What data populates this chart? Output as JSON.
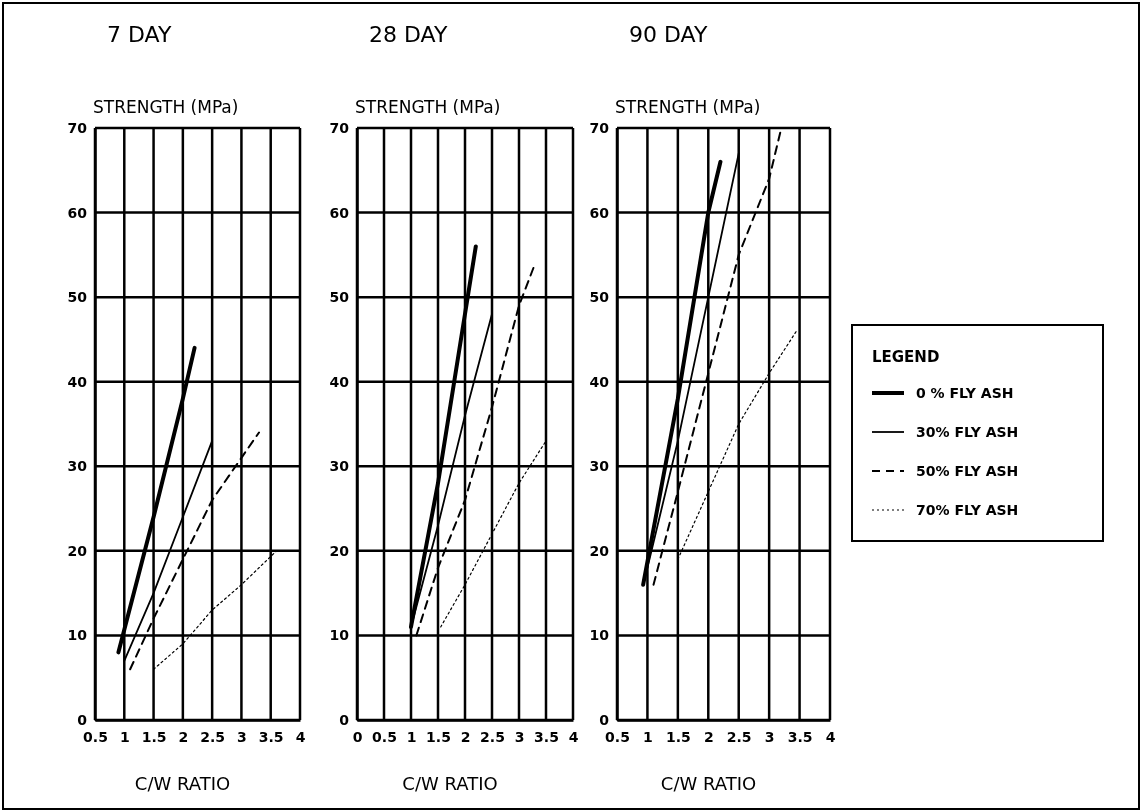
{
  "chart_data": [
    {
      "type": "line",
      "title": "7 DAY",
      "ylabel": "STRENGTH (MPa)",
      "xlabel": "C/W RATIO",
      "xlim": [
        0.5,
        4
      ],
      "xticks": [
        0.5,
        1,
        1.5,
        2,
        2.5,
        3,
        3.5,
        4
      ],
      "ylim": [
        0,
        70
      ],
      "yticks": [
        0,
        10,
        20,
        30,
        40,
        50,
        60,
        70
      ],
      "grid": true,
      "legend": false,
      "series": [
        {
          "color": "#000000",
          "line_style": "solid",
          "x": [
            0.9,
            1.5,
            2,
            2.2
          ],
          "values": [
            8,
            24,
            38,
            44
          ]
        },
        {
          "color": "#000000",
          "line_style": "solid",
          "x": [
            1,
            1.5,
            2,
            2.5
          ],
          "values": [
            7,
            15,
            24,
            33
          ]
        },
        {
          "color": "#000000",
          "line_style": "dashed",
          "x": [
            1.1,
            1.5,
            2,
            2.5,
            3,
            3.3
          ],
          "values": [
            6,
            12,
            19,
            26,
            31,
            34
          ]
        },
        {
          "color": "#000000",
          "line_style": "dotted",
          "x": [
            1.5,
            2,
            2.5,
            3,
            3.6
          ],
          "values": [
            6,
            9,
            13,
            16,
            20
          ]
        }
      ]
    },
    {
      "type": "line",
      "title": "28 DAY",
      "ylabel": "STRENGTH (MPa)",
      "xlabel": "C/W RATIO",
      "xlim": [
        0,
        4
      ],
      "xticks": [
        0,
        0.5,
        1,
        1.5,
        2,
        2.5,
        3,
        3.5,
        4
      ],
      "ylim": [
        0,
        70
      ],
      "yticks": [
        0,
        10,
        20,
        30,
        40,
        50,
        60,
        70
      ],
      "grid": true,
      "legend": false,
      "series": [
        {
          "color": "#000000",
          "line_style": "solid",
          "x": [
            1,
            1.5,
            2,
            2.2
          ],
          "values": [
            11,
            28,
            48,
            56
          ]
        },
        {
          "color": "#000000",
          "line_style": "solid",
          "x": [
            1,
            1.5,
            2,
            2.5
          ],
          "values": [
            11,
            23,
            36,
            48
          ]
        },
        {
          "color": "#000000",
          "line_style": "dashed",
          "x": [
            1.1,
            1.5,
            2,
            2.5,
            3,
            3.3
          ],
          "values": [
            10,
            18,
            26,
            37,
            49,
            54
          ]
        },
        {
          "color": "#000000",
          "line_style": "dotted",
          "x": [
            1.55,
            2,
            2.5,
            3,
            3.5
          ],
          "values": [
            11,
            16,
            22,
            28,
            33
          ]
        }
      ]
    },
    {
      "type": "line",
      "title": "90 DAY",
      "ylabel": "STRENGTH (MPa)",
      "xlabel": "C/W RATIO",
      "xlim": [
        0.5,
        4
      ],
      "xticks": [
        0.5,
        1,
        1.5,
        2,
        2.5,
        3,
        3.5,
        4
      ],
      "ylim": [
        0,
        70
      ],
      "yticks": [
        0,
        10,
        20,
        30,
        40,
        50,
        60,
        70
      ],
      "grid": true,
      "legend": "right",
      "legend_title": "LEGEND",
      "series": [
        {
          "name": "0 % FLY ASH",
          "color": "#000000",
          "line_style": "solid",
          "x": [
            0.93,
            1.5,
            2,
            2.2
          ],
          "values": [
            16,
            38,
            60,
            66
          ]
        },
        {
          "name": "30% FLY ASH",
          "color": "#000000",
          "line_style": "solid",
          "x": [
            1,
            1.5,
            2,
            2.5
          ],
          "values": [
            18,
            33,
            50,
            67
          ]
        },
        {
          "name": "50% FLY ASH",
          "color": "#000000",
          "line_style": "dashed",
          "x": [
            1.1,
            1.5,
            2,
            2.5,
            3,
            3.2
          ],
          "values": [
            16,
            27,
            41,
            55,
            64,
            70
          ]
        },
        {
          "name": "70% FLY ASH",
          "color": "#000000",
          "line_style": "dotted",
          "x": [
            1.5,
            2,
            2.5,
            3,
            3.45
          ],
          "values": [
            19,
            27,
            35,
            41,
            46
          ]
        }
      ]
    }
  ]
}
